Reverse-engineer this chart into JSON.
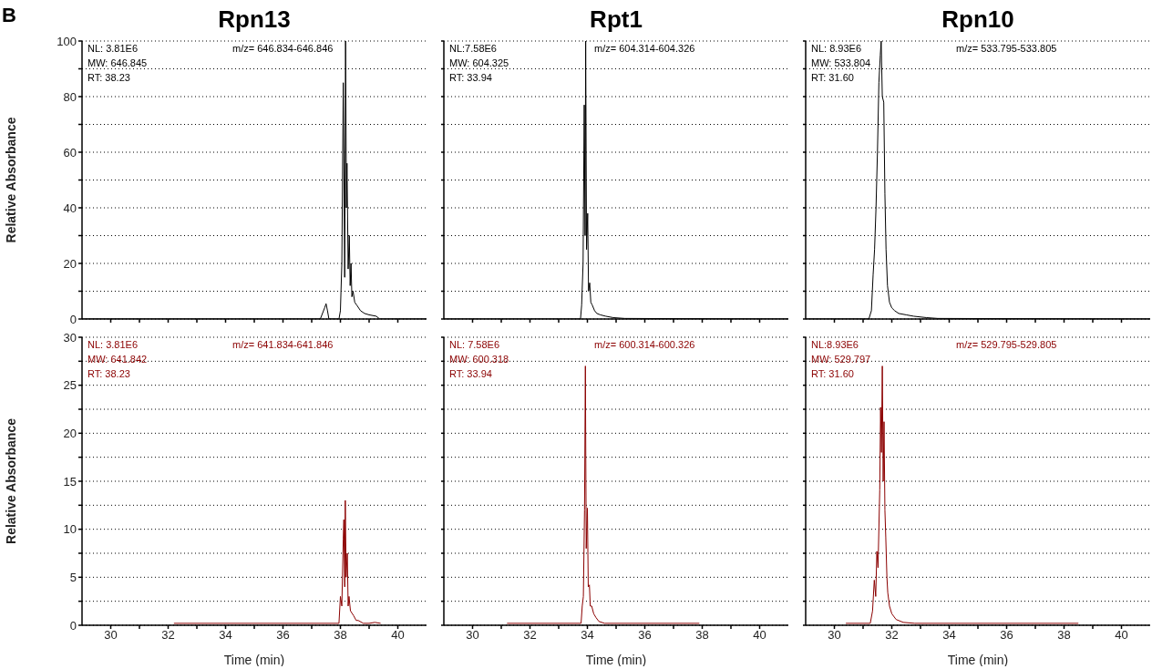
{
  "chart_data": [
    {
      "type": "line",
      "title": "Rpn13",
      "ylabel": "Relative Absorbance",
      "xlim": [
        29,
        41
      ],
      "xticks": [
        {
          "value": 30,
          "label": null
        },
        {
          "value": 31,
          "label": null
        },
        {
          "value": 32,
          "label": null
        },
        {
          "value": 33,
          "label": null
        },
        {
          "value": 34,
          "label": null
        },
        {
          "value": 35,
          "label": null
        },
        {
          "value": 36,
          "label": null
        },
        {
          "value": 37,
          "label": null
        },
        {
          "value": 38,
          "label": null
        },
        {
          "value": 39,
          "label": null
        },
        {
          "value": 40,
          "label": null
        }
      ],
      "ylim": [
        0,
        100
      ],
      "yticks": [
        0,
        {
          "value": 10,
          "label": null
        },
        20,
        {
          "value": 30,
          "label": null
        },
        40,
        {
          "value": 50,
          "label": null
        },
        60,
        {
          "value": 70,
          "label": null
        },
        80,
        {
          "value": 90,
          "label": null
        },
        100
      ],
      "grid": "y",
      "marker": "none",
      "tick_labels": "y",
      "annotations": [
        "NL: 3.81E6",
        "m/z= 646.834-646.846",
        "MW: 646.845",
        "RT: 38.23",
        "B"
      ],
      "series": [
        {
          "color": "#000000",
          "x": [
            29,
            37.3,
            37.45,
            37.5,
            37.55,
            37.6,
            37.95,
            38.0,
            38.05,
            38.1,
            38.15,
            38.18,
            38.21,
            38.23,
            38.27,
            38.31,
            38.34,
            38.37,
            38.4,
            38.44,
            38.5,
            38.57,
            38.7,
            38.84,
            39.0,
            39.25,
            39.37,
            41
          ],
          "values": [
            0,
            0,
            4,
            5.5,
            3,
            0,
            0,
            3,
            20,
            85,
            15,
            100,
            40,
            56,
            18,
            30,
            12,
            20,
            8,
            10,
            6,
            5,
            3,
            2,
            1.5,
            1,
            0,
            0
          ]
        }
      ]
    },
    {
      "type": "line",
      "title": "Rpt1",
      "xlim": [
        29,
        41
      ],
      "xticks": [
        {
          "value": 30,
          "label": null
        },
        {
          "value": 31,
          "label": null
        },
        {
          "value": 32,
          "label": null
        },
        {
          "value": 33,
          "label": null
        },
        {
          "value": 34,
          "label": null
        },
        {
          "value": 35,
          "label": null
        },
        {
          "value": 36,
          "label": null
        },
        {
          "value": 37,
          "label": null
        },
        {
          "value": 38,
          "label": null
        },
        {
          "value": 39,
          "label": null
        },
        {
          "value": 40,
          "label": null
        }
      ],
      "ylim": [
        0,
        100
      ],
      "yticks": [
        {
          "value": 0,
          "label": null
        },
        {
          "value": 10,
          "label": null
        },
        {
          "value": 20,
          "label": null
        },
        {
          "value": 30,
          "label": null
        },
        {
          "value": 40,
          "label": null
        },
        {
          "value": 50,
          "label": null
        },
        {
          "value": 60,
          "label": null
        },
        {
          "value": 70,
          "label": null
        },
        {
          "value": 80,
          "label": null
        },
        {
          "value": 90,
          "label": null
        },
        {
          "value": 100,
          "label": null
        }
      ],
      "grid": "y",
      "marker": "none",
      "tick_labels": false,
      "annotations": [
        "NL:7.58E6",
        "m/z= 604.314-604.326",
        "MW: 604.325",
        "RT: 33.94"
      ],
      "series": [
        {
          "color": "#000000",
          "x": [
            29,
            33.76,
            33.8,
            33.85,
            33.89,
            33.92,
            33.94,
            33.97,
            34.01,
            34.04,
            34.08,
            34.12,
            34.17,
            34.25,
            34.33,
            34.45,
            34.64,
            34.9,
            35.3,
            41
          ],
          "values": [
            0,
            0,
            5,
            20,
            77,
            30,
            100,
            25,
            38,
            10,
            13,
            6,
            5,
            3,
            2,
            1.5,
            1,
            0.5,
            0.2,
            0
          ]
        }
      ]
    },
    {
      "type": "line",
      "title": "Rpn10",
      "xlim": [
        29,
        41
      ],
      "xticks": [
        {
          "value": 30,
          "label": null
        },
        {
          "value": 31,
          "label": null
        },
        {
          "value": 32,
          "label": null
        },
        {
          "value": 33,
          "label": null
        },
        {
          "value": 34,
          "label": null
        },
        {
          "value": 35,
          "label": null
        },
        {
          "value": 36,
          "label": null
        },
        {
          "value": 37,
          "label": null
        },
        {
          "value": 38,
          "label": null
        },
        {
          "value": 39,
          "label": null
        },
        {
          "value": 40,
          "label": null
        }
      ],
      "ylim": [
        0,
        100
      ],
      "yticks": [
        {
          "value": 0,
          "label": null
        },
        {
          "value": 10,
          "label": null
        },
        {
          "value": 20,
          "label": null
        },
        {
          "value": 30,
          "label": null
        },
        {
          "value": 40,
          "label": null
        },
        {
          "value": 50,
          "label": null
        },
        {
          "value": 60,
          "label": null
        },
        {
          "value": 70,
          "label": null
        },
        {
          "value": 80,
          "label": null
        },
        {
          "value": 90,
          "label": null
        },
        {
          "value": 100,
          "label": null
        }
      ],
      "grid": "y",
      "marker": "none",
      "tick_labels": false,
      "annotations": [
        "NL: 8.93E6",
        "m/z= 533.795-533.805",
        "MW: 533.804",
        "RT: 31.60"
      ],
      "series": [
        {
          "color": "#000000",
          "x": [
            29,
            31.2,
            31.29,
            31.35,
            31.4,
            31.45,
            31.5,
            31.55,
            31.6,
            31.63,
            31.67,
            31.72,
            31.76,
            31.8,
            31.85,
            31.92,
            32.0,
            32.1,
            32.24,
            32.5,
            32.76,
            33.2,
            33.6,
            41
          ],
          "values": [
            0,
            0,
            3,
            16,
            25,
            40,
            60,
            85,
            95,
            100,
            80,
            78,
            45,
            25,
            12,
            6,
            4,
            3,
            2,
            1.5,
            1,
            0.5,
            0.2,
            0
          ]
        }
      ]
    },
    {
      "type": "line",
      "xlabel": "Time (min)",
      "ylabel": "Relative Absorbance",
      "xlim": [
        29,
        41
      ],
      "xticks": [
        30,
        {
          "value": 31,
          "label": null
        },
        32,
        {
          "value": 33,
          "label": null
        },
        34,
        {
          "value": 35,
          "label": null
        },
        36,
        {
          "value": 37,
          "label": null
        },
        38,
        {
          "value": 39,
          "label": null
        },
        40
      ],
      "ylim": [
        0,
        30
      ],
      "yticks": [
        0,
        {
          "value": 2.5,
          "label": null
        },
        5,
        {
          "value": 7.5,
          "label": null
        },
        10,
        {
          "value": 12.5,
          "label": null
        },
        15,
        {
          "value": 17.5,
          "label": null
        },
        20,
        {
          "value": 22.5,
          "label": null
        },
        25,
        {
          "value": 27.5,
          "label": null
        },
        30
      ],
      "grid": "y",
      "marker": "none",
      "annotations": [
        "NL: 3.81E6",
        "m/z= 641.834-641.846",
        "MW: 641.842",
        "RT: 38.23"
      ],
      "series": [
        {
          "color": "#8b0000",
          "x": [
            32.2,
            37.95,
            38.0,
            38.05,
            38.1,
            38.12,
            38.15,
            38.17,
            38.2,
            38.24,
            38.27,
            38.3,
            38.35,
            38.46,
            38.55,
            38.62,
            38.8,
            39.0,
            39.2,
            39.4
          ],
          "values": [
            0.2,
            0.2,
            3,
            2,
            9,
            11,
            4,
            13,
            5,
            7.5,
            2,
            3,
            1.5,
            1,
            0.5,
            0.5,
            0.2,
            0.2,
            0.3,
            0.2
          ]
        }
      ]
    },
    {
      "type": "line",
      "xlabel": "Time (min)",
      "xlim": [
        29,
        41
      ],
      "xticks": [
        30,
        {
          "value": 31,
          "label": null
        },
        32,
        {
          "value": 33,
          "label": null
        },
        34,
        {
          "value": 35,
          "label": null
        },
        36,
        {
          "value": 37,
          "label": null
        },
        38,
        {
          "value": 39,
          "label": null
        },
        40
      ],
      "ylim": [
        0,
        30
      ],
      "yticks": [
        {
          "value": 0,
          "label": null
        },
        {
          "value": 2.5,
          "label": null
        },
        {
          "value": 5,
          "label": null
        },
        {
          "value": 7.5,
          "label": null
        },
        {
          "value": 10,
          "label": null
        },
        {
          "value": 12.5,
          "label": null
        },
        {
          "value": 15,
          "label": null
        },
        {
          "value": 17.5,
          "label": null
        },
        {
          "value": 20,
          "label": null
        },
        {
          "value": 22.5,
          "label": null
        },
        {
          "value": 25,
          "label": null
        },
        {
          "value": 27.5,
          "label": null
        },
        {
          "value": 30,
          "label": null
        }
      ],
      "grid": "y",
      "marker": "none",
      "tick_labels": "x",
      "annotations": [
        "NL: 7.58E6",
        "m/z= 600.314-600.326",
        "MW: 600.318",
        "RT: 33.94"
      ],
      "series": [
        {
          "color": "#8b0000",
          "x": [
            31.2,
            33.78,
            33.82,
            33.86,
            33.9,
            33.93,
            33.96,
            34.0,
            34.03,
            34.07,
            34.1,
            34.15,
            34.22,
            34.3,
            34.4,
            34.6,
            35.0,
            37.9
          ],
          "values": [
            0.2,
            0.2,
            2,
            3,
            12,
            27,
            8,
            12.2,
            4,
            4.2,
            2,
            2,
            1.2,
            0.8,
            0.4,
            0.2,
            0.2,
            0.2
          ]
        }
      ]
    },
    {
      "type": "line",
      "xlabel": "Time (min)",
      "xlim": [
        29,
        41
      ],
      "xticks": [
        30,
        {
          "value": 31,
          "label": null
        },
        32,
        {
          "value": 33,
          "label": null
        },
        34,
        {
          "value": 35,
          "label": null
        },
        36,
        {
          "value": 37,
          "label": null
        },
        38,
        {
          "value": 39,
          "label": null
        },
        40
      ],
      "ylim": [
        0,
        30
      ],
      "yticks": [
        {
          "value": 0,
          "label": null
        },
        {
          "value": 2.5,
          "label": null
        },
        {
          "value": 5,
          "label": null
        },
        {
          "value": 7.5,
          "label": null
        },
        {
          "value": 10,
          "label": null
        },
        {
          "value": 12.5,
          "label": null
        },
        {
          "value": 15,
          "label": null
        },
        {
          "value": 17.5,
          "label": null
        },
        {
          "value": 20,
          "label": null
        },
        {
          "value": 22.5,
          "label": null
        },
        {
          "value": 25,
          "label": null
        },
        {
          "value": 27.5,
          "label": null
        },
        {
          "value": 30,
          "label": null
        }
      ],
      "grid": "y",
      "marker": "none",
      "tick_labels": "x",
      "annotations": [
        "NL:8.93E6",
        "m/z= 529.795-529.805",
        "MW: 529.797",
        "RT: 31.60"
      ],
      "series": [
        {
          "color": "#8b0000",
          "x": [
            30.4,
            31.25,
            31.33,
            31.39,
            31.44,
            31.48,
            31.52,
            31.58,
            31.61,
            31.64,
            31.67,
            31.7,
            31.73,
            31.76,
            31.79,
            31.83,
            31.86,
            31.92,
            32.0,
            32.15,
            32.4,
            32.8,
            38.5
          ],
          "values": [
            0.2,
            0.2,
            1.5,
            4.7,
            3,
            7.7,
            6,
            14.1,
            22.7,
            18,
            27,
            15,
            21.2,
            12,
            9.2,
            5,
            3.4,
            2,
            1.2,
            0.6,
            0.3,
            0.2,
            0.2
          ]
        }
      ]
    }
  ]
}
